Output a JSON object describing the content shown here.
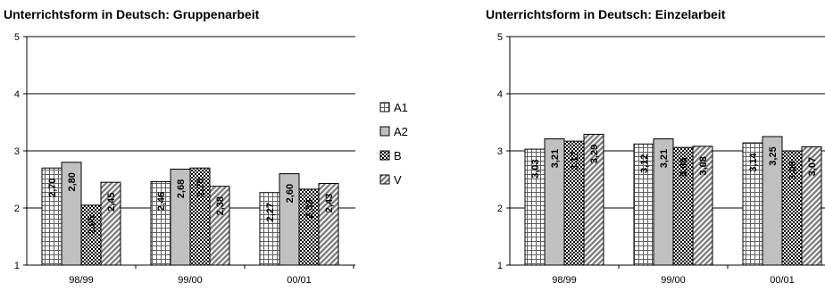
{
  "chart_data": [
    {
      "type": "bar",
      "title": "Unterrichtsform in Deutsch: Gruppenarbeit",
      "categories": [
        "98/99",
        "99/00",
        "00/01"
      ],
      "ylim": [
        1,
        5
      ],
      "yticks": [
        "1",
        "2",
        "3",
        "4",
        "5"
      ],
      "grid": true,
      "legend_position": "right",
      "series": [
        {
          "name": "A1",
          "values": [
            2.7,
            2.46,
            2.27
          ],
          "labels": [
            "2,70",
            "2,46",
            "2,27"
          ]
        },
        {
          "name": "A2",
          "values": [
            2.8,
            2.68,
            2.6
          ],
          "labels": [
            "2,80",
            "2,68",
            "2,60"
          ]
        },
        {
          "name": "B",
          "values": [
            2.05,
            2.7,
            2.33
          ],
          "labels": [
            "2,05",
            "2,70",
            "2,33"
          ]
        },
        {
          "name": "V",
          "values": [
            2.45,
            2.38,
            2.43
          ],
          "labels": [
            "2,45",
            "2,38",
            "2,43"
          ]
        }
      ]
    },
    {
      "type": "bar",
      "title": "Unterrichtsform in Deutsch: Einzelarbeit",
      "categories": [
        "98/99",
        "99/00",
        "00/01"
      ],
      "ylim": [
        1,
        5
      ],
      "yticks": [
        "1",
        "2",
        "3",
        "4",
        "5"
      ],
      "grid": true,
      "series": [
        {
          "name": "A1",
          "values": [
            3.03,
            3.12,
            3.14
          ],
          "labels": [
            "3,03",
            "3,12",
            "3,14"
          ]
        },
        {
          "name": "A2",
          "values": [
            3.21,
            3.21,
            3.25
          ],
          "labels": [
            "3,21",
            "3,21",
            "3,25"
          ]
        },
        {
          "name": "B",
          "values": [
            3.17,
            3.06,
            3.0
          ],
          "labels": [
            "3,17",
            "3,06",
            "3,00"
          ]
        },
        {
          "name": "V",
          "values": [
            3.29,
            3.08,
            3.07
          ],
          "labels": [
            "3,29",
            "3,08",
            "3,07"
          ]
        }
      ]
    }
  ],
  "legend": {
    "items": [
      {
        "label": "A1",
        "pattern": "grid"
      },
      {
        "label": "A2",
        "pattern": "solid-gray"
      },
      {
        "label": "B",
        "pattern": "dots"
      },
      {
        "label": "V",
        "pattern": "diagonal"
      }
    ]
  },
  "colors": {
    "bar_fill": "#c0c0c0",
    "pattern_ink": "#000000",
    "gridline": "#000000"
  }
}
